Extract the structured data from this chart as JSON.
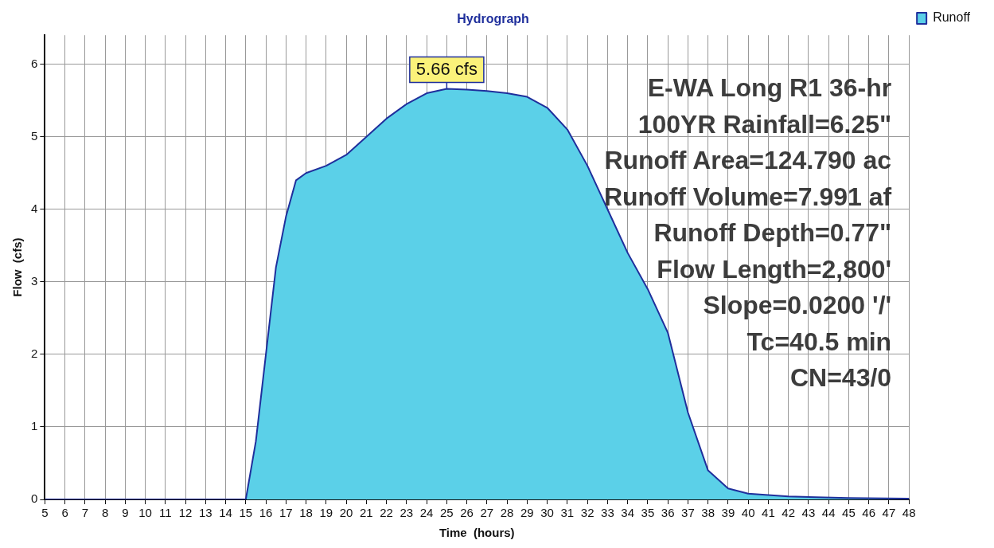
{
  "chart_data": {
    "type": "area",
    "title": "Hydrograph",
    "xlabel": "Time  (hours)",
    "ylabel": "Flow  (cfs)",
    "x": [
      5,
      15,
      15.5,
      16,
      16.5,
      17,
      17.5,
      18,
      19,
      20,
      21,
      22,
      23,
      24,
      25,
      26,
      27,
      28,
      29,
      30,
      31,
      32,
      33,
      34,
      35,
      36,
      37,
      38,
      39,
      40,
      42,
      45,
      48
    ],
    "series": [
      {
        "name": "Runoff",
        "color": "#5bd0e8",
        "values": [
          0,
          0,
          0.8,
          2.0,
          3.2,
          3.9,
          4.4,
          4.5,
          4.6,
          4.75,
          5.0,
          5.25,
          5.45,
          5.6,
          5.66,
          5.65,
          5.63,
          5.6,
          5.55,
          5.4,
          5.1,
          4.6,
          4.0,
          3.4,
          2.9,
          2.3,
          1.2,
          0.4,
          0.15,
          0.08,
          0.04,
          0.02,
          0.01
        ]
      }
    ],
    "xlim": [
      5,
      48
    ],
    "xticks": [
      5,
      6,
      7,
      8,
      9,
      10,
      11,
      12,
      13,
      14,
      15,
      16,
      17,
      18,
      19,
      20,
      21,
      22,
      23,
      24,
      25,
      26,
      27,
      28,
      29,
      30,
      31,
      32,
      33,
      34,
      35,
      36,
      37,
      38,
      39,
      40,
      41,
      42,
      43,
      44,
      45,
      46,
      47,
      48
    ],
    "ylim": [
      0,
      6.4
    ],
    "yticks": [
      0,
      1,
      2,
      3,
      4,
      5,
      6
    ],
    "grid": true,
    "legend": "top right",
    "marker": "none",
    "annotations": [
      {
        "text": "5.66 cfs",
        "x": 25,
        "y": 5.66
      },
      "E-WA Long R1 36-hr",
      "100YR Rainfall=6.25\"",
      "Runoff Area=124.790 ac",
      "Runoff Volume=7.991 af",
      "Runoff Depth=0.77\"",
      "Flow Length=2,800'",
      "Slope=0.0200 '/'",
      "Tc=40.5 min",
      "CN=43/0"
    ]
  }
}
